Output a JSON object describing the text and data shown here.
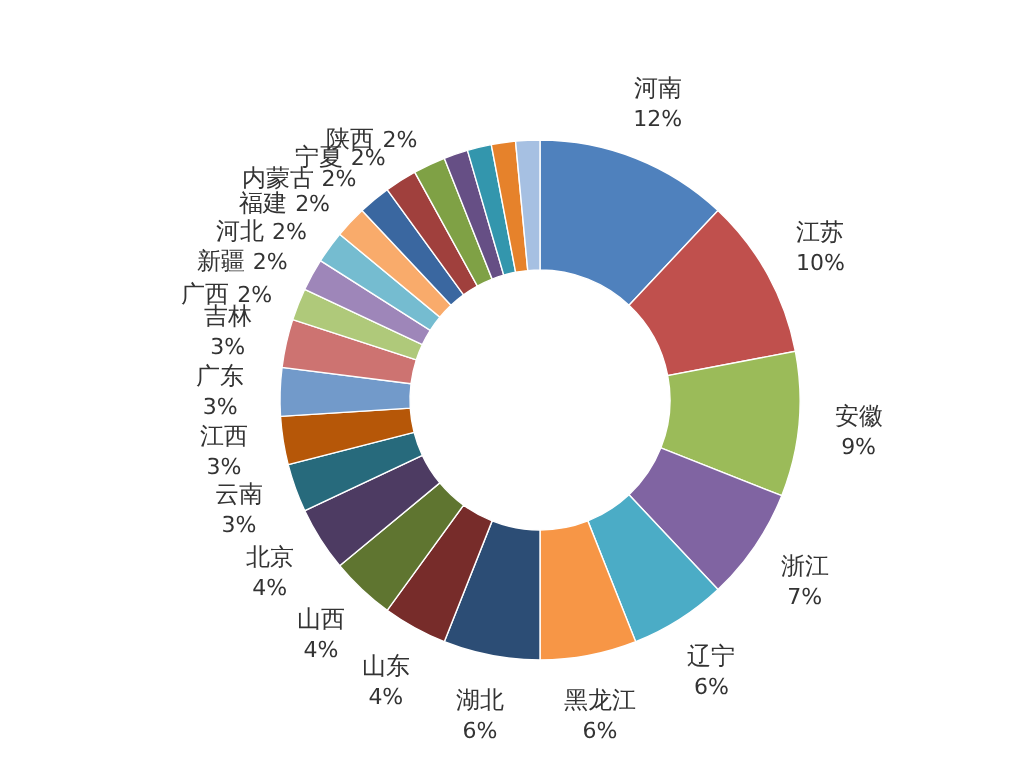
{
  "chart_data": {
    "type": "donut",
    "categories": [
      "河南",
      "江苏",
      "安徽",
      "浙江",
      "辽宁",
      "黑龙江",
      "湖北",
      "山东",
      "山西",
      "北京",
      "云南",
      "江西",
      "广东",
      "吉林",
      "广西",
      "新疆",
      "河北",
      "福建",
      "内蒙古",
      "宁夏",
      "陕西",
      null,
      null,
      null,
      null
    ],
    "values": [
      12,
      10,
      9,
      7,
      6,
      6,
      6,
      4,
      4,
      4,
      3,
      3,
      3,
      3,
      2,
      2,
      2,
      2,
      2,
      2,
      2,
      1.5,
      1.5,
      1.5,
      1.5
    ],
    "colors": [
      "#4f81bd",
      "#c0504d",
      "#9bbb59",
      "#8064a2",
      "#4bacc6",
      "#f79646",
      "#2c4d75",
      "#772c2a",
      "#5f7530",
      "#4d3b62",
      "#276a7c",
      "#b65708",
      "#729aca",
      "#cd7371",
      "#afc97a",
      "#9e86b9",
      "#75bcd0",
      "#f9ab6b",
      "#3a67a0",
      "#a0403d",
      "#7fa145",
      "#664f85",
      "#3396ad",
      "#e6822b",
      "#a6c0e2"
    ],
    "value_labels": [
      "12%",
      "10%",
      "9%",
      "7%",
      "6%",
      "6%",
      "6%",
      "4%",
      "4%",
      "4%",
      "3%",
      "3%",
      "3%",
      "3%",
      "2%",
      "2%",
      "2%",
      "2%",
      "2%",
      "2%",
      "2%",
      null,
      null,
      null,
      null
    ]
  }
}
